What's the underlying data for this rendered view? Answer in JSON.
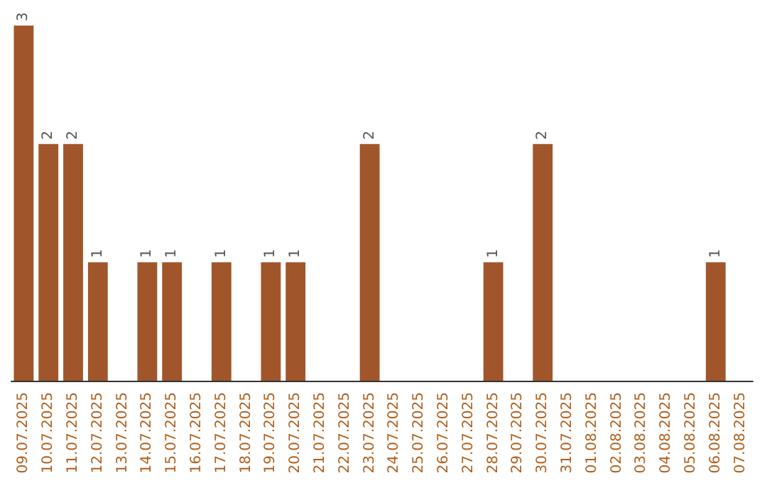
{
  "chart_data": {
    "type": "bar",
    "categories": [
      "09.07.2025",
      "10.07.2025",
      "11.07.2025",
      "12.07.2025",
      "13.07.2025",
      "14.07.2025",
      "15.07.2025",
      "16.07.2025",
      "17.07.2025",
      "18.07.2025",
      "19.07.2025",
      "20.07.2025",
      "21.07.2025",
      "22.07.2025",
      "23.07.2025",
      "24.07.2025",
      "25.07.2025",
      "26.07.2025",
      "27.07.2025",
      "28.07.2025",
      "29.07.2025",
      "30.07.2025",
      "31.07.2025",
      "01.08.2025",
      "02.08.2025",
      "03.08.2025",
      "04.08.2025",
      "05.08.2025",
      "06.08.2025",
      "07.08.2025"
    ],
    "values": [
      3,
      2,
      2,
      1,
      0,
      1,
      1,
      0,
      1,
      0,
      1,
      1,
      0,
      0,
      2,
      0,
      0,
      0,
      0,
      1,
      0,
      2,
      0,
      0,
      0,
      0,
      0,
      0,
      1,
      0
    ],
    "value_labels": [
      "3",
      "2",
      "2",
      "1",
      null,
      "1",
      "1",
      null,
      "1",
      null,
      "1",
      "1",
      null,
      null,
      "2",
      null,
      null,
      null,
      null,
      "1",
      null,
      "2",
      null,
      null,
      null,
      null,
      null,
      null,
      "1",
      null
    ],
    "color": "#a0562a"
  }
}
